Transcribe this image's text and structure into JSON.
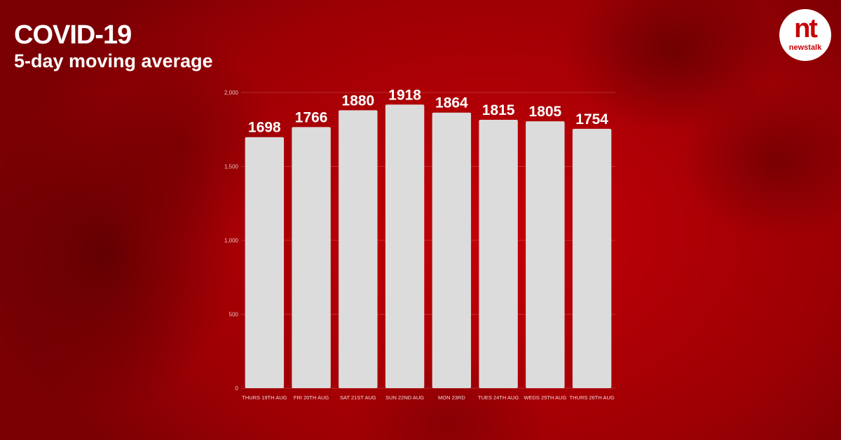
{
  "title": "COVID-19",
  "subtitle": "5-day moving average",
  "logo": {
    "mark": "nt",
    "wordmark": "newstalk"
  },
  "colors": {
    "background": "#b50005",
    "bar": "#dcdcdc",
    "text": "#ffffff"
  },
  "chart_data": {
    "type": "bar",
    "categories": [
      "THURS 19TH AUG",
      "FRI 20TH AUG",
      "SAT 21ST AUG",
      "SUN 22ND AUG",
      "MON 23RD",
      "TUES 24TH AUG",
      "WEDS 25TH AUG",
      "THURS 26TH AUG"
    ],
    "values": [
      1698,
      1766,
      1880,
      1918,
      1864,
      1815,
      1805,
      1754
    ],
    "data_labels": [
      "1698",
      "1766",
      "1880",
      "1918",
      "1864",
      "1815",
      "1805",
      "1754"
    ],
    "ylim": [
      0,
      2000
    ],
    "yticks": [
      0,
      500,
      1000,
      1500,
      2000
    ],
    "ytick_labels": [
      "0",
      "500",
      "1,000",
      "1,500",
      "2,000"
    ],
    "grid": true
  }
}
